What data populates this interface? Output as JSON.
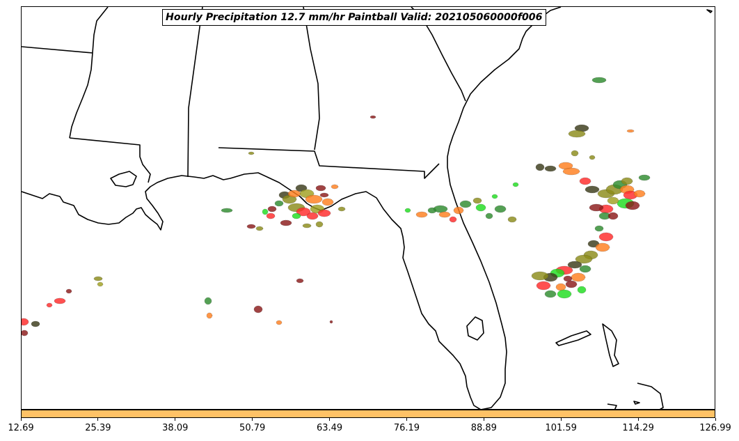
{
  "title": "Hourly Precipitation 12.7 mm/hr Paintball Valid: 202105060000f006",
  "colorbar": {
    "color": "#ffc266",
    "tick_labels": [
      "12.69",
      "25.39",
      "38.09",
      "50.79",
      "63.49",
      "76.19",
      "88.89",
      "101.59",
      "114.29",
      "126.99"
    ]
  },
  "paintball_colors": [
    "#ff2a2a",
    "#ff7f1f",
    "#2e8b2e",
    "#8b8b1a",
    "#1fdd1f",
    "#8b1a1a",
    "#3a3a1a",
    "#a0a020"
  ]
}
